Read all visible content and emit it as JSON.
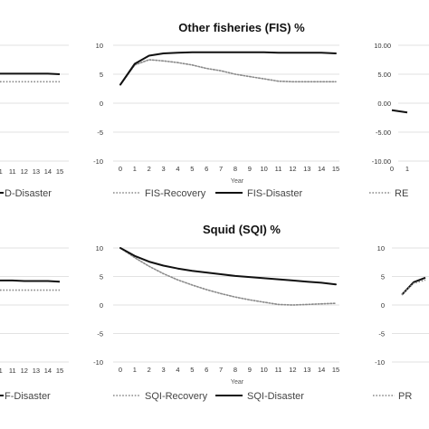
{
  "chart_data": [
    {
      "type": "line",
      "visible": "partial-left-top",
      "x": [
        11,
        12,
        13,
        14,
        15
      ],
      "xtick_labels": [
        "1",
        "11",
        "12",
        "13",
        "14",
        "15"
      ],
      "series": [
        {
          "name": "",
          "style": "dotted",
          "values": [
            3.7,
            3.7,
            3.7,
            3.7,
            3.7
          ]
        },
        {
          "name": "",
          "style": "solid",
          "values": [
            5.1,
            5.1,
            5.1,
            5.1,
            5.0
          ]
        }
      ],
      "legend": [
        {
          "name": "D-Disaster",
          "style": "solid"
        }
      ]
    },
    {
      "type": "line",
      "title": "Other fisheries (FIS) %",
      "xlabel": "Year",
      "ylim": [
        -10,
        10
      ],
      "yticks": [
        10,
        5,
        0,
        -5,
        -10
      ],
      "x": [
        0,
        1,
        2,
        3,
        4,
        5,
        6,
        7,
        8,
        9,
        10,
        11,
        12,
        13,
        14,
        15
      ],
      "grid": "horizontal",
      "legend_position": "bottom",
      "series": [
        {
          "name": "FIS-Recovery",
          "style": "dotted",
          "values": [
            3.2,
            6.6,
            7.5,
            7.3,
            7.0,
            6.6,
            6.0,
            5.6,
            5.0,
            4.6,
            4.2,
            3.8,
            3.7,
            3.7,
            3.7,
            3.7
          ]
        },
        {
          "name": "FIS-Disaster",
          "style": "solid",
          "values": [
            3.2,
            6.8,
            8.2,
            8.6,
            8.7,
            8.8,
            8.8,
            8.8,
            8.8,
            8.8,
            8.8,
            8.7,
            8.7,
            8.7,
            8.7,
            8.6
          ]
        }
      ]
    },
    {
      "type": "line",
      "visible": "partial-right-top",
      "ytick_labels": [
        "10.00",
        "5.00",
        "0.00",
        "-5.00",
        "-10.00"
      ],
      "ylim": [
        -10,
        10
      ],
      "xtick_labels": [
        "0",
        "1"
      ],
      "series": [
        {
          "name": "",
          "style": "solid",
          "values": [
            -1.2,
            -1.6
          ]
        }
      ],
      "legend": [
        {
          "name": "RE",
          "style": "dotted"
        }
      ]
    },
    {
      "type": "line",
      "visible": "partial-left-bottom",
      "x": [
        11,
        12,
        13,
        14,
        15
      ],
      "xtick_labels": [
        "1",
        "11",
        "12",
        "13",
        "14",
        "15"
      ],
      "series": [
        {
          "name": "",
          "style": "dotted",
          "values": [
            2.6,
            2.6,
            2.6,
            2.6,
            2.6
          ]
        },
        {
          "name": "",
          "style": "solid",
          "values": [
            4.3,
            4.2,
            4.2,
            4.2,
            4.1
          ]
        }
      ],
      "legend": [
        {
          "name": "F-Disaster",
          "style": "solid"
        }
      ]
    },
    {
      "type": "line",
      "title": "Squid (SQI) %",
      "xlabel": "Year",
      "ylim": [
        -10,
        10
      ],
      "yticks": [
        10,
        5,
        0,
        -5,
        -10
      ],
      "x": [
        0,
        1,
        2,
        3,
        4,
        5,
        6,
        7,
        8,
        9,
        10,
        11,
        12,
        13,
        14,
        15
      ],
      "grid": "horizontal",
      "legend_position": "bottom",
      "series": [
        {
          "name": "SQI-Recovery",
          "style": "dotted",
          "values": [
            10.0,
            8.3,
            6.8,
            5.5,
            4.4,
            3.5,
            2.7,
            2.0,
            1.4,
            0.9,
            0.5,
            0.1,
            0.0,
            0.1,
            0.2,
            0.3
          ]
        },
        {
          "name": "SQI-Disaster",
          "style": "solid",
          "values": [
            10.0,
            8.6,
            7.6,
            6.9,
            6.4,
            6.0,
            5.7,
            5.4,
            5.1,
            4.9,
            4.7,
            4.5,
            4.3,
            4.1,
            3.9,
            3.6
          ]
        }
      ]
    },
    {
      "type": "line",
      "visible": "partial-right-bottom",
      "yticks": [
        10,
        5,
        0,
        -5,
        -10
      ],
      "ylim": [
        -10,
        10
      ],
      "series": [
        {
          "name": "",
          "style": "solid",
          "values": [
            1.8,
            4.0,
            4.8
          ]
        },
        {
          "name": "",
          "style": "dotted",
          "values": [
            1.8,
            3.8,
            4.4
          ]
        }
      ],
      "legend": [
        {
          "name": "PR",
          "style": "dotted"
        }
      ]
    }
  ]
}
